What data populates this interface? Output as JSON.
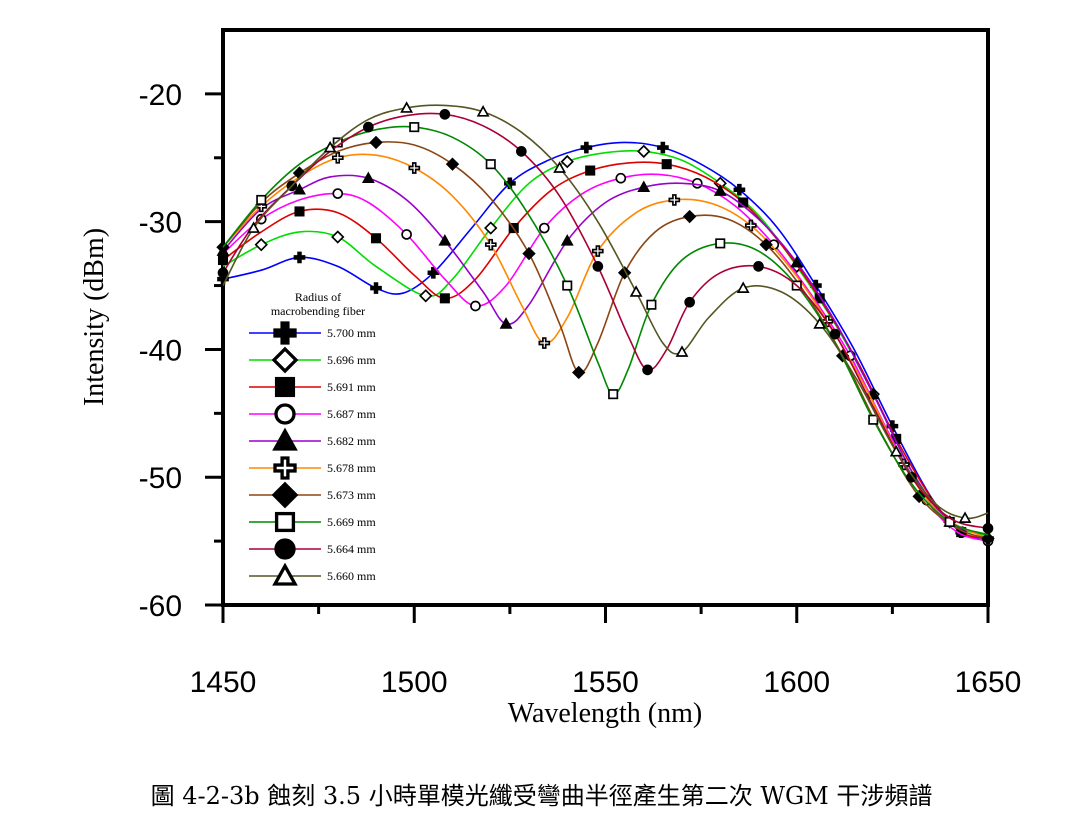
{
  "chart_data": {
    "type": "line",
    "xlabel": "Wavelength (nm)",
    "ylabel": "Intensity (dBm)",
    "xlim": [
      1450,
      1650
    ],
    "ylim": [
      -60,
      -15
    ],
    "xticks": [
      1450,
      1500,
      1550,
      1600,
      1650
    ],
    "yticks": [
      -60,
      -50,
      -40,
      -30,
      -20
    ],
    "legend": {
      "title_line1": "Radius of",
      "title_line2": "macrobending fiber",
      "placement": "left-middle inside plot"
    },
    "series": [
      {
        "name": "5.700 mm",
        "color": "#0000ff",
        "marker": "plus-filled",
        "points": [
          [
            1450,
            -34.5
          ],
          [
            1460,
            -33.8
          ],
          [
            1470,
            -32.8
          ],
          [
            1480,
            -33.5
          ],
          [
            1490,
            -35.2
          ],
          [
            1497,
            -35.6
          ],
          [
            1505,
            -34
          ],
          [
            1515,
            -30.5
          ],
          [
            1525,
            -27
          ],
          [
            1535,
            -25.2
          ],
          [
            1545,
            -24.2
          ],
          [
            1555,
            -23.8
          ],
          [
            1565,
            -24.2
          ],
          [
            1575,
            -25.5
          ],
          [
            1585,
            -27.5
          ],
          [
            1595,
            -30.5
          ],
          [
            1605,
            -35
          ],
          [
            1615,
            -40
          ],
          [
            1625,
            -46
          ],
          [
            1635,
            -51.5
          ],
          [
            1643,
            -54.3
          ],
          [
            1650,
            -54.8
          ]
        ]
      },
      {
        "name": "5.696 mm",
        "color": "#00dd00",
        "marker": "diamond-open",
        "points": [
          [
            1450,
            -33.5
          ],
          [
            1460,
            -31.8
          ],
          [
            1470,
            -30.8
          ],
          [
            1480,
            -31.2
          ],
          [
            1490,
            -33.5
          ],
          [
            1503,
            -35.8
          ],
          [
            1510,
            -34.5
          ],
          [
            1520,
            -30.5
          ],
          [
            1530,
            -27
          ],
          [
            1540,
            -25.3
          ],
          [
            1550,
            -24.6
          ],
          [
            1560,
            -24.5
          ],
          [
            1570,
            -25.2
          ],
          [
            1580,
            -27
          ],
          [
            1590,
            -29.5
          ],
          [
            1600,
            -33.5
          ],
          [
            1610,
            -38
          ],
          [
            1620,
            -43.5
          ],
          [
            1630,
            -49.5
          ],
          [
            1640,
            -53.5
          ],
          [
            1650,
            -54.6
          ]
        ]
      },
      {
        "name": "5.691 mm",
        "color": "#dd0000",
        "marker": "square-filled",
        "points": [
          [
            1450,
            -33
          ],
          [
            1460,
            -30.8
          ],
          [
            1470,
            -29.2
          ],
          [
            1480,
            -29.3
          ],
          [
            1490,
            -31.3
          ],
          [
            1500,
            -34.2
          ],
          [
            1508,
            -36
          ],
          [
            1516,
            -34.5
          ],
          [
            1526,
            -30.5
          ],
          [
            1536,
            -27.5
          ],
          [
            1546,
            -26
          ],
          [
            1556,
            -25.4
          ],
          [
            1566,
            -25.5
          ],
          [
            1576,
            -26.5
          ],
          [
            1586,
            -28.5
          ],
          [
            1596,
            -31.8
          ],
          [
            1606,
            -36
          ],
          [
            1616,
            -41
          ],
          [
            1626,
            -47
          ],
          [
            1636,
            -52
          ],
          [
            1643,
            -54.3
          ],
          [
            1650,
            -54.8
          ]
        ]
      },
      {
        "name": "5.687 mm",
        "color": "#ff00ff",
        "marker": "circle-open",
        "points": [
          [
            1450,
            -32.5
          ],
          [
            1460,
            -29.8
          ],
          [
            1470,
            -28.3
          ],
          [
            1480,
            -27.8
          ],
          [
            1488,
            -28.5
          ],
          [
            1498,
            -31
          ],
          [
            1508,
            -34.5
          ],
          [
            1516,
            -36.6
          ],
          [
            1524,
            -35
          ],
          [
            1534,
            -30.5
          ],
          [
            1544,
            -27.8
          ],
          [
            1554,
            -26.6
          ],
          [
            1564,
            -26.3
          ],
          [
            1574,
            -27
          ],
          [
            1584,
            -28.8
          ],
          [
            1594,
            -31.8
          ],
          [
            1604,
            -35.8
          ],
          [
            1614,
            -40.5
          ],
          [
            1624,
            -46.5
          ],
          [
            1634,
            -51.8
          ],
          [
            1642,
            -54.3
          ],
          [
            1650,
            -55
          ]
        ]
      },
      {
        "name": "5.682 mm",
        "color": "#9900cc",
        "marker": "triangle-filled",
        "points": [
          [
            1450,
            -32.3
          ],
          [
            1460,
            -29
          ],
          [
            1470,
            -27.5
          ],
          [
            1478,
            -26.5
          ],
          [
            1488,
            -26.6
          ],
          [
            1498,
            -28.3
          ],
          [
            1508,
            -31.5
          ],
          [
            1518,
            -35.5
          ],
          [
            1524,
            -38
          ],
          [
            1530,
            -36.5
          ],
          [
            1540,
            -31.5
          ],
          [
            1550,
            -28.5
          ],
          [
            1560,
            -27.3
          ],
          [
            1570,
            -27
          ],
          [
            1580,
            -27.6
          ],
          [
            1590,
            -29.8
          ],
          [
            1600,
            -33.2
          ],
          [
            1610,
            -37.8
          ],
          [
            1620,
            -43.5
          ],
          [
            1630,
            -49.5
          ],
          [
            1640,
            -53.5
          ],
          [
            1650,
            -54.5
          ]
        ]
      },
      {
        "name": "5.678 mm",
        "color": "#ff8800",
        "marker": "plus-open",
        "points": [
          [
            1450,
            -32
          ],
          [
            1460,
            -28.8
          ],
          [
            1470,
            -26.5
          ],
          [
            1480,
            -25
          ],
          [
            1490,
            -24.8
          ],
          [
            1500,
            -25.8
          ],
          [
            1510,
            -28
          ],
          [
            1520,
            -31.8
          ],
          [
            1528,
            -36.5
          ],
          [
            1534,
            -39.5
          ],
          [
            1540,
            -37.5
          ],
          [
            1548,
            -32.3
          ],
          [
            1558,
            -29.3
          ],
          [
            1568,
            -28.3
          ],
          [
            1578,
            -28.6
          ],
          [
            1588,
            -30.3
          ],
          [
            1598,
            -33.5
          ],
          [
            1608,
            -37.8
          ],
          [
            1618,
            -43
          ],
          [
            1628,
            -49
          ],
          [
            1638,
            -53
          ],
          [
            1650,
            -54.8
          ]
        ]
      },
      {
        "name": "5.673 mm",
        "color": "#8b4513",
        "marker": "diamond-filled",
        "points": [
          [
            1450,
            -32
          ],
          [
            1460,
            -28.5
          ],
          [
            1470,
            -26.2
          ],
          [
            1480,
            -24.5
          ],
          [
            1490,
            -23.8
          ],
          [
            1500,
            -24
          ],
          [
            1510,
            -25.5
          ],
          [
            1520,
            -28.2
          ],
          [
            1530,
            -32.5
          ],
          [
            1538,
            -38
          ],
          [
            1543,
            -41.8
          ],
          [
            1548,
            -39.5
          ],
          [
            1555,
            -34
          ],
          [
            1563,
            -30.8
          ],
          [
            1572,
            -29.6
          ],
          [
            1582,
            -29.8
          ],
          [
            1592,
            -31.8
          ],
          [
            1602,
            -35.5
          ],
          [
            1612,
            -40.5
          ],
          [
            1622,
            -46.5
          ],
          [
            1632,
            -51.5
          ],
          [
            1642,
            -54
          ],
          [
            1650,
            -54.8
          ]
        ]
      },
      {
        "name": "5.669 mm",
        "color": "#008800",
        "marker": "square-open",
        "points": [
          [
            1450,
            -32
          ],
          [
            1460,
            -28.3
          ],
          [
            1470,
            -25.5
          ],
          [
            1480,
            -23.8
          ],
          [
            1490,
            -22.8
          ],
          [
            1500,
            -22.6
          ],
          [
            1510,
            -23.4
          ],
          [
            1520,
            -25.5
          ],
          [
            1530,
            -29.5
          ],
          [
            1540,
            -35
          ],
          [
            1548,
            -41
          ],
          [
            1552,
            -43.5
          ],
          [
            1556,
            -41.5
          ],
          [
            1562,
            -36.5
          ],
          [
            1570,
            -33
          ],
          [
            1580,
            -31.7
          ],
          [
            1590,
            -32.3
          ],
          [
            1600,
            -35
          ],
          [
            1610,
            -39.5
          ],
          [
            1620,
            -45.5
          ],
          [
            1630,
            -50.5
          ],
          [
            1640,
            -53.5
          ],
          [
            1650,
            -54.5
          ]
        ]
      },
      {
        "name": "5.664 mm",
        "color": "#aa0033",
        "marker": "circle-filled",
        "points": [
          [
            1450,
            -34
          ],
          [
            1458,
            -30.3
          ],
          [
            1468,
            -27.2
          ],
          [
            1478,
            -24.5
          ],
          [
            1488,
            -22.6
          ],
          [
            1498,
            -21.7
          ],
          [
            1508,
            -21.6
          ],
          [
            1518,
            -22.5
          ],
          [
            1528,
            -24.5
          ],
          [
            1538,
            -28
          ],
          [
            1548,
            -33.5
          ],
          [
            1556,
            -39
          ],
          [
            1561,
            -41.6
          ],
          [
            1566,
            -40
          ],
          [
            1572,
            -36.3
          ],
          [
            1580,
            -34
          ],
          [
            1590,
            -33.5
          ],
          [
            1600,
            -35
          ],
          [
            1610,
            -38.8
          ],
          [
            1620,
            -44.5
          ],
          [
            1630,
            -50
          ],
          [
            1640,
            -53.2
          ],
          [
            1650,
            -54
          ]
        ]
      },
      {
        "name": "5.660 mm",
        "color": "#555522",
        "marker": "triangle-open",
        "points": [
          [
            1450,
            -35
          ],
          [
            1458,
            -30.5
          ],
          [
            1468,
            -27.2
          ],
          [
            1478,
            -24.2
          ],
          [
            1488,
            -22
          ],
          [
            1498,
            -21.1
          ],
          [
            1508,
            -20.9
          ],
          [
            1518,
            -21.4
          ],
          [
            1528,
            -23
          ],
          [
            1538,
            -25.8
          ],
          [
            1548,
            -30
          ],
          [
            1558,
            -35.5
          ],
          [
            1565,
            -39.5
          ],
          [
            1570,
            -40.2
          ],
          [
            1577,
            -37.5
          ],
          [
            1586,
            -35.2
          ],
          [
            1596,
            -35.5
          ],
          [
            1606,
            -38
          ],
          [
            1616,
            -42.5
          ],
          [
            1626,
            -48
          ],
          [
            1636,
            -52
          ],
          [
            1644,
            -53.2
          ],
          [
            1650,
            -52.8
          ]
        ]
      }
    ]
  },
  "caption": "圖 4-2-3b 蝕刻 3.5 小時單模光纖受彎曲半徑產生第二次 WGM 干涉頻譜"
}
